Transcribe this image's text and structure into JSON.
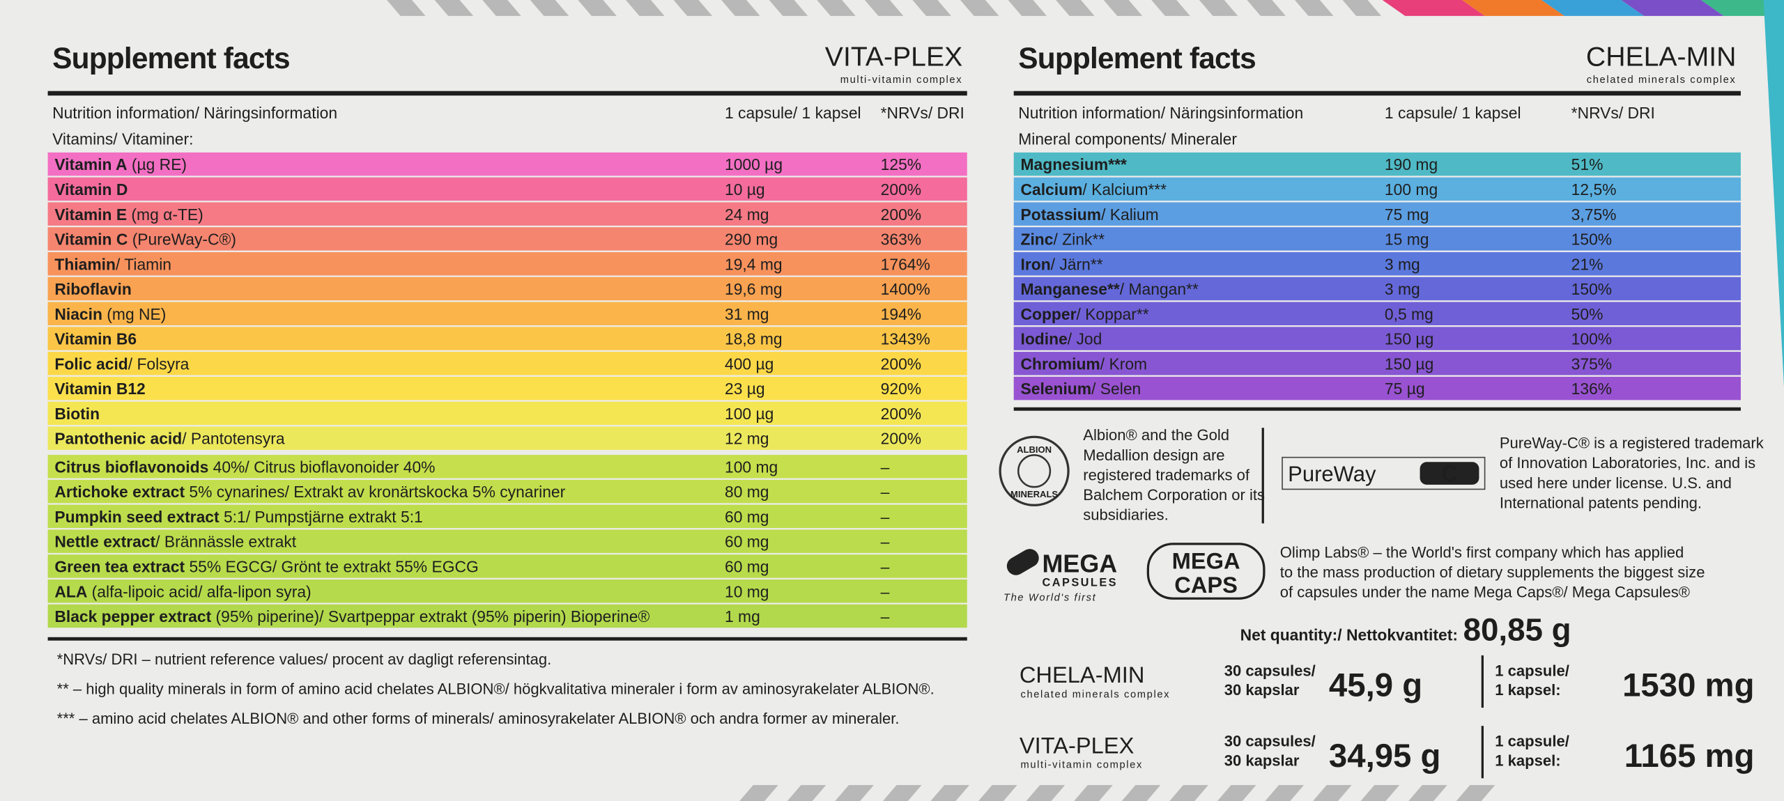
{
  "left_panel": {
    "title": "Supplement facts",
    "brand": "VITA-PLEX",
    "brand_tagline": "multi-vitamin complex",
    "header": [
      "Nutrition information/ Näringsinformation",
      "1 capsule/ 1 kapsel",
      "*NRVs/ DRI"
    ],
    "section": "Vitamins/ Vitaminer:",
    "rows": [
      {
        "name": "Vitamin A",
        "detail": " (µg RE)",
        "amount": "1000 µg",
        "nrv": "125%"
      },
      {
        "name": "Vitamin D",
        "amount": "10 µg",
        "nrv": "200%"
      },
      {
        "name": "Vitamin E",
        "detail": " (mg α-TE)",
        "amount": "24 mg",
        "nrv": "200%"
      },
      {
        "name": "Vitamin C",
        "detail": " (PureWay-C®)",
        "amount": "290 mg",
        "nrv": "363%"
      },
      {
        "name": "Thiamin",
        "detail": "/ Tiamin",
        "amount": "19,4 mg",
        "nrv": "1764%"
      },
      {
        "name": "Riboflavin",
        "amount": "19,6 mg",
        "nrv": "1400%"
      },
      {
        "name": "Niacin",
        "detail": " (mg NE)",
        "amount": "31 mg",
        "nrv": "194%"
      },
      {
        "name": "Vitamin B6",
        "amount": "18,8 mg",
        "nrv": "1343%"
      },
      {
        "name": "Folic acid",
        "detail": "/ Folsyra",
        "amount": "400 µg",
        "nrv": "200%"
      },
      {
        "name": "Vitamin B12",
        "amount": "23 µg",
        "nrv": "920%"
      },
      {
        "name": "Biotin",
        "amount": "100 µg",
        "nrv": "200%"
      },
      {
        "name": "Pantothenic acid",
        "detail": "/ Pantotensyra",
        "amount": "12 mg",
        "nrv": "200%"
      },
      {
        "name": "Citrus bioflavonoids",
        "detail": " 40%/ Citrus bioflavonoider 40%",
        "amount": "100 mg",
        "nrv": "–"
      },
      {
        "name": "Artichoke extract",
        "detail": " 5% cynarines/ Extrakt av kronärtskocka 5% cynariner",
        "amount": "80 mg",
        "nrv": "–"
      },
      {
        "name": "Pumpkin seed extract",
        "detail": " 5:1/ Pumpstjärne extrakt 5:1",
        "amount": "60 mg",
        "nrv": "–"
      },
      {
        "name": "Nettle extract",
        "detail": "/ Brännässle extrakt",
        "amount": "60 mg",
        "nrv": "–"
      },
      {
        "name": "Green tea extract",
        "detail": " 55% EGCG/ Grönt te extrakt 55% EGCG",
        "amount": "60 mg",
        "nrv": "–"
      },
      {
        "name": "ALA",
        "detail": " (alfa-lipoic acid/ alfa-lipon syra)",
        "amount": "10 mg",
        "nrv": "–"
      },
      {
        "name": "Black pepper extract",
        "detail": " (95% piperine)/ Svartpeppar extrakt (95% piperin) Bioperine®",
        "amount": "1 mg",
        "nrv": "–"
      }
    ],
    "footnotes": [
      "*NRVs/ DRI – nutrient reference values/ procent av dagligt referensintag.",
      "** – high quality minerals in form of amino acid chelates ALBION®/ högkvalitativa mineraler i form av aminosyrakelater ALBION®.",
      "*** – amino acid chelates ALBION® and other forms of minerals/ aminosyrakelater ALBION® och andra former av mineraler."
    ]
  },
  "right_panel": {
    "title": "Supplement facts",
    "brand": "CHELA-MIN",
    "brand_tagline": "chelated minerals complex",
    "header": [
      "Nutrition information/ Näringsinformation",
      "1 capsule/ 1 kapsel",
      "*NRVs/ DRI"
    ],
    "section": "Mineral components/ Mineraler",
    "rows": [
      {
        "name": "Magnesium***",
        "amount": "190 mg",
        "nrv": "51%"
      },
      {
        "name": "Calcium",
        "detail": "/ Kalcium***",
        "amount": "100 mg",
        "nrv": "12,5%"
      },
      {
        "name": "Potassium",
        "detail": "/ Kalium",
        "amount": "75 mg",
        "nrv": "3,75%"
      },
      {
        "name": "Zinc",
        "detail": "/ Zink**",
        "amount": "15 mg",
        "nrv": "150%"
      },
      {
        "name": "Iron",
        "detail": "/ Järn**",
        "amount": "3 mg",
        "nrv": "21%"
      },
      {
        "name": "Manganese**",
        "detail": "/ Mangan**",
        "amount": "3 mg",
        "nrv": "150%"
      },
      {
        "name": "Copper",
        "detail": "/ Koppar**",
        "amount": "0,5 mg",
        "nrv": "50%"
      },
      {
        "name": "Iodine",
        "detail": "/ Jod",
        "amount": "150 µg",
        "nrv": "100%"
      },
      {
        "name": "Chromium",
        "detail": "/ Krom",
        "amount": "150 µg",
        "nrv": "375%"
      },
      {
        "name": "Selenium",
        "detail": "/ Selen",
        "amount": "75 µg",
        "nrv": "136%"
      }
    ]
  },
  "albion": {
    "logo": [
      "ALBION",
      "MINERALS"
    ],
    "text": [
      "Albion® and the Gold",
      "Medallion design are",
      "registered trademarks of",
      "Balchem Corporation or its",
      "subsidiaries."
    ]
  },
  "pureway": {
    "logo": [
      "PureWay",
      "C"
    ],
    "text": [
      "PureWay-C® is a registered trademark",
      "of Innovation Laboratories, Inc. and is",
      "used here under license. U.S. and",
      "International patents pending."
    ]
  },
  "mega": {
    "logo_capsules": [
      "MEGA",
      "CAPSULES",
      "The World's first"
    ],
    "logo_caps": [
      "MEGA",
      "CAPS"
    ],
    "text": [
      "Olimp Labs® – the World's first company which has applied",
      "to the mass production of dietary supplements the biggest size",
      "of capsules under the name Mega Caps®/ Mega Capsules®"
    ]
  },
  "net_quantity": {
    "label": "Net quantity:/ Nettokvantitet:",
    "value": "80,85 g"
  },
  "products": [
    {
      "brand": "CHELA-MIN",
      "tagline": "chelated minerals complex",
      "pack_label": [
        "30 capsules/",
        "30 kapslar"
      ],
      "pack_weight": "45,9 g",
      "unit_label": [
        "1 capsule/",
        "1 kapsel:"
      ],
      "unit_weight": "1530 mg"
    },
    {
      "brand": "VITA-PLEX",
      "tagline": "multi-vitamin complex",
      "pack_label": [
        "30 capsules/",
        "30 kapslar"
      ],
      "pack_weight": "34,95 g",
      "unit_label": [
        "1 capsule/",
        "1 kapsel:"
      ],
      "unit_weight": "1165 mg"
    }
  ]
}
